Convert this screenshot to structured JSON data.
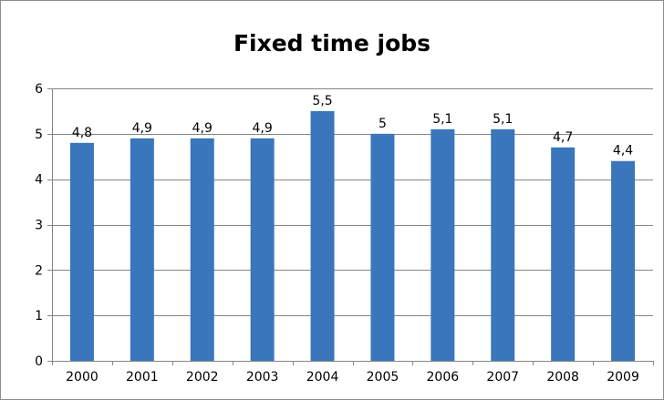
{
  "chart_data": {
    "type": "bar",
    "title": "Fixed time jobs",
    "xlabel": "",
    "ylabel": "",
    "categories": [
      "2000",
      "2001",
      "2002",
      "2003",
      "2004",
      "2005",
      "2006",
      "2007",
      "2008",
      "2009"
    ],
    "values": [
      4.8,
      4.9,
      4.9,
      4.9,
      5.5,
      5,
      5.1,
      5.1,
      4.7,
      4.4
    ],
    "data_labels": [
      "4,8",
      "4,9",
      "4,9",
      "4,9",
      "5,5",
      "5",
      "5,1",
      "5,1",
      "4,7",
      "4,4"
    ],
    "ylim": [
      0,
      6
    ],
    "y_ticks": [
      "0",
      "1",
      "2",
      "3",
      "4",
      "5",
      "6"
    ],
    "y_tick_values": [
      0,
      1,
      2,
      3,
      4,
      5,
      6
    ],
    "grid": true,
    "legend": "none",
    "colors": {
      "bar": "#3a76bb",
      "grid": "#868686",
      "axis": "#868686",
      "frame": "#8c8c8c"
    }
  }
}
